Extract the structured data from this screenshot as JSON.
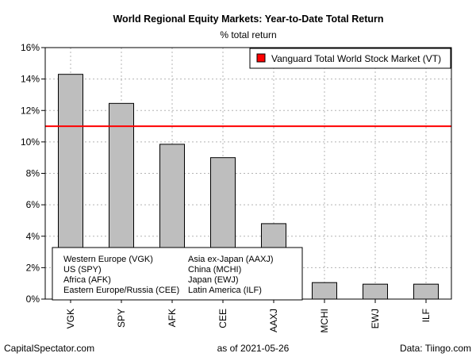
{
  "chart_data": {
    "type": "bar",
    "title": "World Regional Equity Markets: Year-to-Date Total Return",
    "subtitle": "% total return",
    "categories": [
      "VGK",
      "SPY",
      "AFK",
      "CEE",
      "AAXJ",
      "MCHI",
      "EWJ",
      "ILF"
    ],
    "values": [
      14.3,
      12.45,
      9.85,
      9.0,
      4.8,
      1.05,
      0.95,
      0.95
    ],
    "ylim": [
      0,
      16
    ],
    "yticks": [
      0,
      2,
      4,
      6,
      8,
      10,
      12,
      14,
      16
    ],
    "ytick_labels": [
      "0%",
      "2%",
      "4%",
      "6%",
      "8%",
      "10%",
      "12%",
      "14%",
      "16%"
    ],
    "grid": true,
    "bar_color": "#bebebe",
    "reference_line": {
      "name": "Vanguard Total World Stock Market (VT)",
      "value": 11.0,
      "color": "#ff0000"
    },
    "legend_position": "top-right",
    "key_box": {
      "left_col": [
        "Western Europe (VGK)",
        "US (SPY)",
        "Africa (AFK)",
        "Eastern Europe/Russia (CEE)"
      ],
      "right_col": [
        "Asia ex-Japan (AAXJ)",
        "China (MCHI)",
        "Japan (EWJ)",
        "Latin America (ILF)"
      ]
    }
  },
  "footer": {
    "left": "CapitalSpectator.com",
    "center": "as of   2021-05-26",
    "right": "Data: Tiingo.com"
  }
}
